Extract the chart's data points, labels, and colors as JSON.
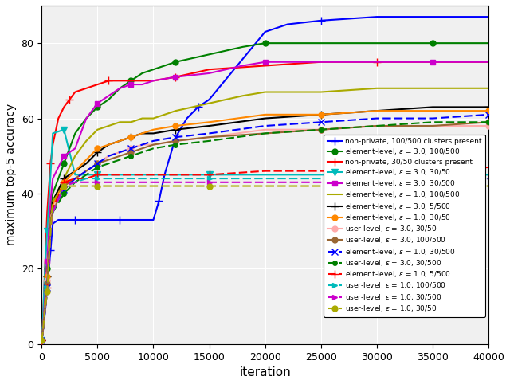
{
  "xlabel": "iteration",
  "ylabel": "maximum top-5 accuracy",
  "xlim": [
    0,
    40000
  ],
  "ylim": [
    0,
    90
  ],
  "yticks": [
    0,
    20,
    40,
    60,
    80
  ],
  "xticks": [
    0,
    5000,
    10000,
    15000,
    20000,
    25000,
    30000,
    35000,
    40000
  ],
  "series": [
    {
      "label": "non-private, 100/500 clusters present",
      "color": "#0000ff",
      "linestyle": "-",
      "marker": "+",
      "markersize": 7,
      "linewidth": 1.5,
      "dashes": [],
      "markevery": 4,
      "x": [
        0,
        100,
        300,
        500,
        800,
        1000,
        1500,
        2000,
        3000,
        4000,
        5000,
        6000,
        7000,
        8000,
        9000,
        10000,
        10500,
        11000,
        12000,
        13000,
        14000,
        15000,
        20000,
        22000,
        25000,
        30000,
        35000,
        40000
      ],
      "y": [
        1,
        3,
        8,
        15,
        25,
        32,
        33,
        33,
        33,
        33,
        33,
        33,
        33,
        33,
        33,
        33,
        38,
        45,
        55,
        60,
        63,
        65,
        83,
        85,
        86,
        87,
        87,
        87
      ]
    },
    {
      "label": "element-level, $\\varepsilon$ = 3.0, 100/500",
      "color": "#008000",
      "linestyle": "-",
      "marker": "o",
      "markersize": 5,
      "linewidth": 1.5,
      "dashes": [],
      "markevery": 3,
      "x": [
        0,
        100,
        300,
        500,
        800,
        1000,
        2000,
        3000,
        4000,
        5000,
        6000,
        7000,
        8000,
        9000,
        10000,
        12000,
        15000,
        18000,
        20000,
        25000,
        30000,
        35000,
        40000
      ],
      "y": [
        1,
        3,
        10,
        20,
        35,
        40,
        48,
        56,
        60,
        63,
        65,
        68,
        70,
        72,
        73,
        75,
        77,
        79,
        80,
        80,
        80,
        80,
        80
      ]
    },
    {
      "label": "non-private, 30/50 clusters present",
      "color": "#ff0000",
      "linestyle": "-",
      "marker": "+",
      "markersize": 7,
      "linewidth": 1.5,
      "dashes": [],
      "markevery": 4,
      "x": [
        0,
        100,
        300,
        500,
        800,
        1000,
        1500,
        2000,
        2500,
        3000,
        4000,
        5000,
        6000,
        7000,
        8000,
        10000,
        12000,
        15000,
        20000,
        25000,
        30000,
        35000,
        40000
      ],
      "y": [
        1,
        5,
        20,
        35,
        48,
        53,
        60,
        63,
        65,
        67,
        68,
        69,
        70,
        70,
        70,
        70,
        71,
        73,
        74,
        75,
        75,
        75,
        75
      ]
    },
    {
      "label": "element-level, $\\varepsilon$ = 3.0, 30/50",
      "color": "#00bbbb",
      "linestyle": "-",
      "marker": "v",
      "markersize": 6,
      "linewidth": 1.5,
      "dashes": [],
      "markevery": 3,
      "x": [
        0,
        100,
        300,
        500,
        800,
        1000,
        2000,
        3000,
        4000,
        5000,
        7000,
        10000,
        15000,
        20000,
        25000,
        30000,
        35000,
        40000
      ],
      "y": [
        1,
        5,
        20,
        30,
        45,
        56,
        57,
        45,
        45,
        45,
        45,
        45,
        45,
        45,
        45,
        45,
        45,
        45
      ]
    },
    {
      "label": "element-level, $\\varepsilon$ = 3.0, 30/500",
      "color": "#cc00cc",
      "linestyle": "-",
      "marker": "s",
      "markersize": 5,
      "linewidth": 1.5,
      "dashes": [],
      "markevery": 3,
      "x": [
        0,
        100,
        300,
        500,
        800,
        1000,
        2000,
        3000,
        4000,
        5000,
        6000,
        7000,
        8000,
        9000,
        10000,
        12000,
        15000,
        18000,
        20000,
        25000,
        30000,
        35000,
        40000
      ],
      "y": [
        1,
        3,
        12,
        22,
        38,
        44,
        50,
        52,
        60,
        64,
        66,
        68,
        69,
        69,
        70,
        71,
        72,
        74,
        75,
        75,
        75,
        75,
        75
      ]
    },
    {
      "label": "element-level, $\\varepsilon$ = 1.0, 100/500",
      "color": "#aaaa00",
      "linestyle": "-",
      "marker": "None",
      "markersize": 5,
      "linewidth": 1.5,
      "dashes": [],
      "markevery": 3,
      "x": [
        0,
        100,
        300,
        500,
        800,
        1000,
        2000,
        3000,
        4000,
        5000,
        6000,
        7000,
        8000,
        9000,
        10000,
        12000,
        15000,
        18000,
        20000,
        25000,
        30000,
        35000,
        40000
      ],
      "y": [
        1,
        3,
        10,
        18,
        33,
        38,
        44,
        50,
        54,
        57,
        58,
        59,
        59,
        60,
        60,
        62,
        64,
        66,
        67,
        67,
        68,
        68,
        68
      ]
    },
    {
      "label": "element-level, $\\varepsilon$ = 3.0, 5/500",
      "color": "#000000",
      "linestyle": "-",
      "marker": "+",
      "markersize": 7,
      "linewidth": 1.5,
      "dashes": [],
      "markevery": 3,
      "x": [
        0,
        100,
        300,
        500,
        800,
        1000,
        2000,
        3000,
        4000,
        5000,
        6000,
        7000,
        8000,
        9000,
        10000,
        12000,
        15000,
        20000,
        25000,
        30000,
        35000,
        40000
      ],
      "y": [
        1,
        3,
        10,
        18,
        33,
        38,
        44,
        46,
        48,
        51,
        53,
        54,
        55,
        56,
        56,
        57,
        58,
        60,
        61,
        62,
        63,
        63
      ]
    },
    {
      "label": "element-level, $\\varepsilon$ = 1.0, 30/50",
      "color": "#ff8800",
      "linestyle": "-",
      "marker": "o",
      "markersize": 5,
      "linewidth": 1.5,
      "dashes": [],
      "markevery": 3,
      "x": [
        0,
        100,
        300,
        500,
        800,
        1000,
        2000,
        3000,
        4000,
        5000,
        6000,
        7000,
        8000,
        9000,
        10000,
        12000,
        15000,
        20000,
        25000,
        30000,
        35000,
        40000
      ],
      "y": [
        1,
        3,
        10,
        18,
        33,
        37,
        43,
        46,
        49,
        52,
        53,
        54,
        55,
        56,
        57,
        58,
        59,
        61,
        61,
        62,
        62,
        62
      ]
    },
    {
      "label": "user-level, $\\varepsilon$ = 3.0, 30/50",
      "color": "#ffaaaa",
      "linestyle": "-",
      "marker": "o",
      "markersize": 5,
      "linewidth": 1.5,
      "dashes": [],
      "markevery": 3,
      "x": [
        0,
        100,
        300,
        500,
        800,
        1000,
        2000,
        3000,
        4000,
        5000,
        6000,
        7000,
        8000,
        9000,
        10000,
        12000,
        15000,
        20000,
        25000,
        30000,
        35000,
        40000
      ],
      "y": [
        1,
        3,
        10,
        17,
        33,
        36,
        42,
        44,
        46,
        48,
        50,
        51,
        52,
        53,
        53,
        54,
        55,
        57,
        57,
        58,
        58,
        58
      ]
    },
    {
      "label": "user-level, $\\varepsilon$ = 3.0, 100/500",
      "color": "#996633",
      "linestyle": "-",
      "marker": "o",
      "markersize": 5,
      "linewidth": 1.5,
      "dashes": [],
      "markevery": 3,
      "x": [
        0,
        100,
        300,
        500,
        800,
        1000,
        2000,
        3000,
        4000,
        5000,
        6000,
        7000,
        8000,
        9000,
        10000,
        12000,
        15000,
        20000,
        25000,
        30000,
        35000,
        40000
      ],
      "y": [
        1,
        3,
        10,
        16,
        33,
        35,
        42,
        44,
        46,
        48,
        49,
        50,
        51,
        52,
        53,
        54,
        55,
        56,
        57,
        58,
        58,
        59
      ]
    },
    {
      "label": "element-level, $\\varepsilon$ = 1.0, 30/500",
      "color": "#0000ff",
      "linestyle": "--",
      "marker": "x",
      "markersize": 6,
      "linewidth": 1.5,
      "dashes": [
        5,
        2
      ],
      "markevery": 3,
      "x": [
        0,
        100,
        300,
        500,
        800,
        1000,
        2000,
        3000,
        4000,
        5000,
        6000,
        7000,
        8000,
        9000,
        10000,
        12000,
        15000,
        20000,
        25000,
        30000,
        35000,
        40000
      ],
      "y": [
        1,
        3,
        9,
        15,
        31,
        36,
        41,
        44,
        46,
        48,
        50,
        51,
        52,
        53,
        54,
        55,
        56,
        58,
        59,
        60,
        60,
        61
      ]
    },
    {
      "label": "user-level, $\\varepsilon$ = 3.0, 30/500",
      "color": "#008000",
      "linestyle": "--",
      "marker": ".",
      "markersize": 8,
      "linewidth": 1.5,
      "dashes": [
        5,
        2
      ],
      "markevery": 3,
      "x": [
        0,
        100,
        300,
        500,
        800,
        1000,
        2000,
        3000,
        4000,
        5000,
        6000,
        7000,
        8000,
        9000,
        10000,
        12000,
        15000,
        20000,
        25000,
        30000,
        35000,
        40000
      ],
      "y": [
        1,
        3,
        9,
        14,
        30,
        35,
        40,
        43,
        45,
        47,
        48,
        49,
        50,
        51,
        52,
        53,
        54,
        56,
        57,
        58,
        59,
        59
      ]
    },
    {
      "label": "element-level, $\\varepsilon$ = 1.0, 5/500",
      "color": "#ff0000",
      "linestyle": "--",
      "marker": "+",
      "markersize": 7,
      "linewidth": 1.5,
      "dashes": [
        5,
        2
      ],
      "markevery": 3,
      "x": [
        0,
        100,
        300,
        500,
        800,
        1000,
        2000,
        3000,
        4000,
        5000,
        7000,
        10000,
        15000,
        20000,
        25000,
        30000,
        35000,
        40000
      ],
      "y": [
        1,
        3,
        9,
        15,
        31,
        36,
        43,
        44,
        44,
        45,
        45,
        45,
        45,
        46,
        46,
        46,
        46,
        47
      ]
    },
    {
      "label": "user-level, $\\varepsilon$ = 1.0, 100/500",
      "color": "#00bbbb",
      "linestyle": "--",
      "marker": ">",
      "markersize": 5,
      "linewidth": 1.5,
      "dashes": [
        5,
        2
      ],
      "markevery": 3,
      "x": [
        0,
        100,
        300,
        500,
        800,
        1000,
        2000,
        3000,
        4000,
        5000,
        7000,
        10000,
        15000,
        20000,
        25000,
        30000,
        35000,
        40000
      ],
      "y": [
        1,
        3,
        9,
        15,
        30,
        35,
        42,
        43,
        44,
        44,
        44,
        44,
        44,
        44,
        44,
        44,
        44,
        44
      ]
    },
    {
      "label": "user-level, $\\varepsilon$ = 1.0, 30/500",
      "color": "#cc00cc",
      "linestyle": "--",
      "marker": ">",
      "markersize": 5,
      "linewidth": 1.5,
      "dashes": [
        5,
        2
      ],
      "markevery": 3,
      "x": [
        0,
        100,
        300,
        500,
        800,
        1000,
        2000,
        3000,
        4000,
        5000,
        7000,
        10000,
        15000,
        20000,
        25000,
        30000,
        35000,
        40000
      ],
      "y": [
        1,
        3,
        9,
        14,
        30,
        35,
        42,
        43,
        43,
        43,
        43,
        43,
        43,
        43,
        43,
        43,
        43,
        44
      ]
    },
    {
      "label": "user-level, $\\varepsilon$ = 1.0, 30/50",
      "color": "#aaaa00",
      "linestyle": "--",
      "marker": "o",
      "markersize": 5,
      "linewidth": 1.5,
      "dashes": [
        5,
        2
      ],
      "markevery": 3,
      "x": [
        0,
        100,
        300,
        500,
        800,
        1000,
        2000,
        3000,
        4000,
        5000,
        7000,
        10000,
        15000,
        20000,
        25000,
        30000,
        35000,
        40000
      ],
      "y": [
        1,
        3,
        9,
        14,
        30,
        38,
        42,
        42,
        42,
        42,
        42,
        42,
        42,
        42,
        42,
        42,
        42,
        42
      ]
    }
  ]
}
